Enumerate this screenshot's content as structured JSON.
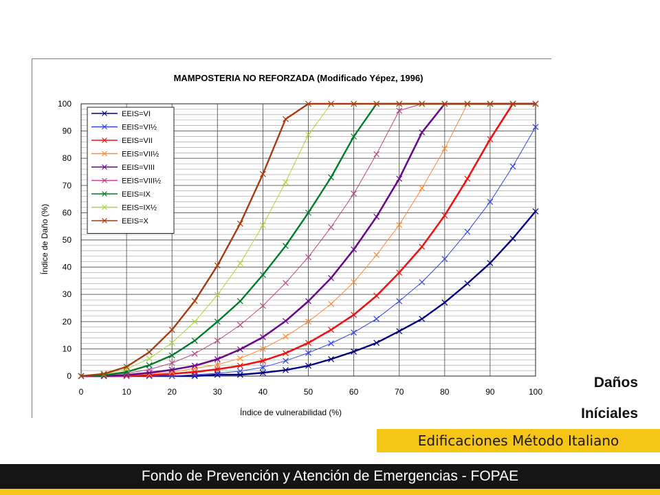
{
  "side_title": {
    "line1": "Daños",
    "line2": "Iníciales"
  },
  "subtitle": "Edificaciones Método Italiano",
  "footer": "Fondo de Prevención y Atención de Emergencias - FOPAE",
  "colors": {
    "accent": "#f5c518",
    "footer_bg": "#151515"
  },
  "chart_data": {
    "type": "line",
    "title": "MAMPOSTERIA NO REFORZADA (Modificado Yépez, 1996)",
    "xlabel": "Índice de vulnerabilidad (%)",
    "ylabel": "Índice de Daño (%)",
    "xlim": [
      0,
      100
    ],
    "ylim": [
      0,
      100
    ],
    "xticks": [
      0,
      10,
      20,
      30,
      40,
      50,
      60,
      70,
      80,
      90,
      100
    ],
    "yticks": [
      0,
      10,
      20,
      30,
      40,
      50,
      60,
      70,
      80,
      90,
      100
    ],
    "grid": true,
    "legend_position": "top-left",
    "x": [
      0,
      5,
      10,
      15,
      20,
      25,
      30,
      35,
      40,
      45,
      50,
      55,
      60,
      65,
      70,
      75,
      80,
      85,
      90,
      95,
      100
    ],
    "series": [
      {
        "name": "EEIS=VI",
        "color": "#000080",
        "values": [
          0,
          0,
          0,
          0,
          0,
          0,
          0.5,
          0.5,
          1.2,
          2.2,
          3.8,
          6.2,
          9,
          12.2,
          16.5,
          21,
          27,
          34,
          41.5,
          50.5,
          60.5
        ]
      },
      {
        "name": "EEIS=VI½",
        "color": "#3344dd",
        "values": [
          0,
          0,
          0,
          0,
          0,
          0.5,
          1,
          1.8,
          3.2,
          5.6,
          8.5,
          12,
          16,
          21,
          27.5,
          34.5,
          43,
          53,
          64,
          77,
          91.5
        ]
      },
      {
        "name": "EEIS=VII",
        "color": "#ee1111",
        "values": [
          0,
          0,
          0,
          0.3,
          0.8,
          1.5,
          2.5,
          3.8,
          5.6,
          8.4,
          12.2,
          17,
          22.5,
          29.5,
          38,
          47.5,
          59,
          72.5,
          87,
          100,
          100
        ]
      },
      {
        "name": "EEIS=VII½",
        "color": "#ff8833",
        "values": [
          0,
          0,
          0.2,
          0.8,
          1.5,
          2.8,
          4.2,
          6.5,
          10,
          14.5,
          20,
          26.5,
          34.5,
          44.5,
          55.5,
          69,
          83.5,
          100,
          100,
          100,
          100
        ]
      },
      {
        "name": "EEIS=VIII",
        "color": "#6a0a8a",
        "values": [
          0,
          0,
          0.4,
          1.2,
          2.3,
          3.8,
          6.2,
          9.8,
          14.3,
          20.2,
          27.5,
          36,
          46.5,
          58.5,
          72.5,
          89.5,
          100,
          100,
          100,
          100,
          100
        ]
      },
      {
        "name": "EEIS=VIII½",
        "color": "#bb4488",
        "values": [
          0,
          0.3,
          1,
          2.4,
          4.8,
          8.2,
          13,
          18.8,
          25.8,
          34.2,
          43.7,
          54.7,
          67,
          81.5,
          97.5,
          100,
          100,
          100,
          100,
          100,
          100
        ]
      },
      {
        "name": "EEIS=IX",
        "color": "#007a2a",
        "values": [
          0,
          0.3,
          1.5,
          4,
          7.6,
          13,
          20,
          27.5,
          37.2,
          47.8,
          60,
          73,
          88,
          100,
          100,
          100,
          100,
          100,
          100,
          100,
          100
        ]
      },
      {
        "name": "EEIS=IX½",
        "color": "#aad633",
        "values": [
          0,
          0.6,
          2.6,
          6.4,
          12.2,
          20,
          29.8,
          41.4,
          55.4,
          71.2,
          88.6,
          100,
          100,
          100,
          100,
          100,
          100,
          100,
          100,
          100,
          100
        ]
      },
      {
        "name": "EEIS=X",
        "color": "#a63a0f",
        "values": [
          0,
          0.8,
          3.4,
          8.8,
          17,
          27.6,
          40.6,
          56,
          74.2,
          94.4,
          100,
          100,
          100,
          100,
          100,
          100,
          100,
          100,
          100,
          100,
          100
        ]
      }
    ]
  }
}
